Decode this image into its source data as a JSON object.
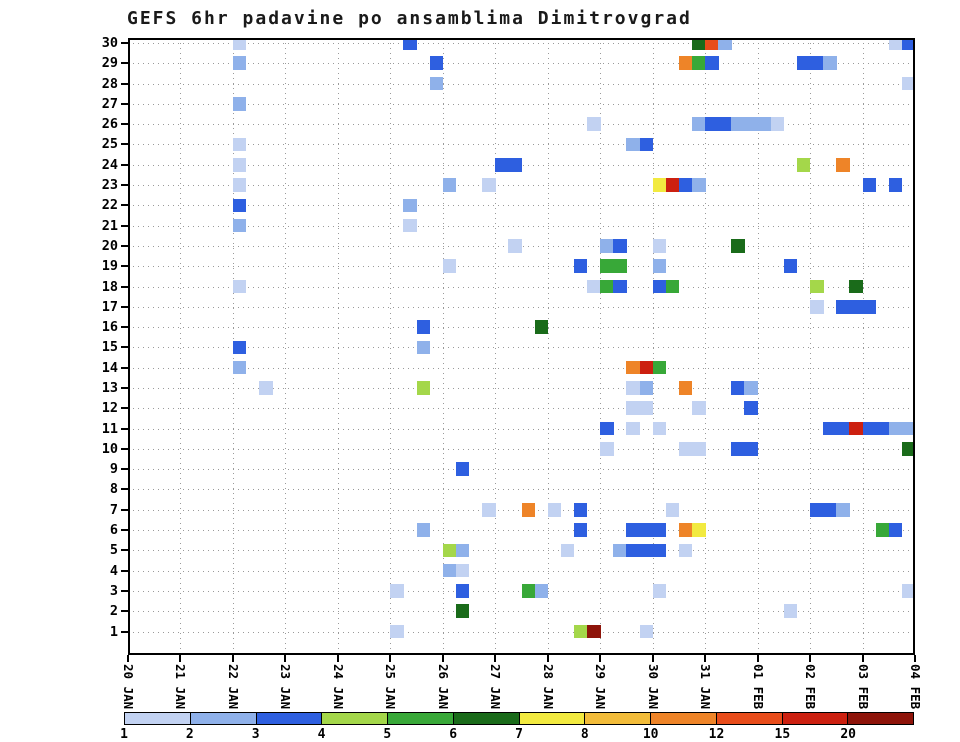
{
  "title": "GEFS 6hr padavine po ansamblima Dimitrovgrad",
  "chart_data": {
    "type": "heatmap",
    "title": "GEFS 6hr padavine po ansamblima Dimitrovgrad",
    "description": "6-hourly precipitation per GEFS ensemble member; x = time (6h steps), y = ensemble member 1-30, color = precipitation amount (mm)",
    "x_tick_labels": [
      "20 JAN",
      "21 JAN",
      "22 JAN",
      "23 JAN",
      "24 JAN",
      "25 JAN",
      "26 JAN",
      "27 JAN",
      "28 JAN",
      "29 JAN",
      "30 JAN",
      "31 JAN",
      "01 FEB",
      "02 FEB",
      "03 FEB",
      "04 FEB"
    ],
    "time_steps_per_day": 4,
    "y_tick_labels": [
      "30",
      "29",
      "28",
      "27",
      "26",
      "25",
      "24",
      "23",
      "22",
      "21",
      "20",
      "19",
      "18",
      "17",
      "16",
      "15",
      "14",
      "13",
      "12",
      "11",
      "10",
      "9",
      "8",
      "7",
      "6",
      "5",
      "4",
      "3",
      "2",
      "1"
    ],
    "levels": [
      1,
      2,
      3,
      4,
      5,
      6,
      7,
      8,
      10,
      12,
      15,
      20
    ],
    "palette": [
      "#c2d2f2",
      "#8fb1ea",
      "#2e5fe0",
      "#a4d74a",
      "#38a838",
      "#1a6b1a",
      "#f2ea40",
      "#f2bc3a",
      "#ee8428",
      "#e84c1a",
      "#cc2010",
      "#8e140a"
    ],
    "cell_format": "[ensemble_member, six_hour_step_index_from_20JAN, palette_color_index]",
    "cells": [
      [
        30,
        8,
        0
      ],
      [
        30,
        21,
        2
      ],
      [
        30,
        43,
        5
      ],
      [
        30,
        44,
        9
      ],
      [
        30,
        45,
        1
      ],
      [
        30,
        58,
        0
      ],
      [
        30,
        59,
        2
      ],
      [
        29,
        8,
        1
      ],
      [
        29,
        23,
        2
      ],
      [
        29,
        42,
        8
      ],
      [
        29,
        43,
        4
      ],
      [
        29,
        44,
        2
      ],
      [
        29,
        51,
        2
      ],
      [
        29,
        52,
        2
      ],
      [
        29,
        53,
        1
      ],
      [
        28,
        23,
        1
      ],
      [
        28,
        59,
        0
      ],
      [
        27,
        8,
        1
      ],
      [
        26,
        35,
        0
      ],
      [
        26,
        43,
        1
      ],
      [
        26,
        44,
        2
      ],
      [
        26,
        45,
        2
      ],
      [
        26,
        46,
        1
      ],
      [
        26,
        47,
        1
      ],
      [
        26,
        48,
        1
      ],
      [
        26,
        49,
        0
      ],
      [
        25,
        8,
        0
      ],
      [
        25,
        38,
        1
      ],
      [
        25,
        39,
        2
      ],
      [
        24,
        8,
        0
      ],
      [
        24,
        28,
        2
      ],
      [
        24,
        29,
        2
      ],
      [
        24,
        51,
        3
      ],
      [
        24,
        54,
        8
      ],
      [
        23,
        8,
        0
      ],
      [
        23,
        24,
        1
      ],
      [
        23,
        27,
        0
      ],
      [
        23,
        40,
        6
      ],
      [
        23,
        41,
        10
      ],
      [
        23,
        42,
        2
      ],
      [
        23,
        43,
        1
      ],
      [
        23,
        56,
        2
      ],
      [
        23,
        58,
        2
      ],
      [
        22,
        8,
        2
      ],
      [
        22,
        21,
        1
      ],
      [
        21,
        8,
        1
      ],
      [
        21,
        21,
        0
      ],
      [
        20,
        29,
        0
      ],
      [
        20,
        36,
        1
      ],
      [
        20,
        37,
        2
      ],
      [
        20,
        40,
        0
      ],
      [
        20,
        46,
        5
      ],
      [
        19,
        24,
        0
      ],
      [
        19,
        34,
        2
      ],
      [
        19,
        36,
        4
      ],
      [
        19,
        37,
        4
      ],
      [
        19,
        40,
        1
      ],
      [
        19,
        50,
        2
      ],
      [
        18,
        8,
        0
      ],
      [
        18,
        35,
        0
      ],
      [
        18,
        36,
        4
      ],
      [
        18,
        37,
        2
      ],
      [
        18,
        40,
        2
      ],
      [
        18,
        41,
        4
      ],
      [
        18,
        52,
        3
      ],
      [
        18,
        55,
        5
      ],
      [
        17,
        52,
        0
      ],
      [
        17,
        54,
        2
      ],
      [
        17,
        55,
        2
      ],
      [
        17,
        56,
        2
      ],
      [
        16,
        22,
        2
      ],
      [
        16,
        31,
        5
      ],
      [
        15,
        8,
        2
      ],
      [
        15,
        22,
        1
      ],
      [
        14,
        8,
        1
      ],
      [
        14,
        38,
        8
      ],
      [
        14,
        39,
        10
      ],
      [
        14,
        40,
        4
      ],
      [
        13,
        10,
        0
      ],
      [
        13,
        22,
        3
      ],
      [
        13,
        38,
        0
      ],
      [
        13,
        39,
        1
      ],
      [
        13,
        42,
        8
      ],
      [
        13,
        46,
        2
      ],
      [
        13,
        47,
        1
      ],
      [
        12,
        38,
        0
      ],
      [
        12,
        39,
        0
      ],
      [
        12,
        43,
        0
      ],
      [
        12,
        47,
        2
      ],
      [
        11,
        36,
        2
      ],
      [
        11,
        38,
        0
      ],
      [
        11,
        40,
        0
      ],
      [
        11,
        53,
        2
      ],
      [
        11,
        54,
        2
      ],
      [
        11,
        55,
        10
      ],
      [
        11,
        56,
        2
      ],
      [
        11,
        57,
        2
      ],
      [
        11,
        58,
        1
      ],
      [
        11,
        59,
        1
      ],
      [
        10,
        36,
        0
      ],
      [
        10,
        42,
        0
      ],
      [
        10,
        43,
        0
      ],
      [
        10,
        46,
        2
      ],
      [
        10,
        47,
        2
      ],
      [
        10,
        59,
        5
      ],
      [
        9,
        25,
        2
      ],
      [
        7,
        27,
        0
      ],
      [
        7,
        30,
        8
      ],
      [
        7,
        32,
        0
      ],
      [
        7,
        34,
        2
      ],
      [
        7,
        41,
        0
      ],
      [
        7,
        52,
        2
      ],
      [
        7,
        53,
        2
      ],
      [
        7,
        54,
        1
      ],
      [
        6,
        22,
        1
      ],
      [
        6,
        34,
        2
      ],
      [
        6,
        38,
        2
      ],
      [
        6,
        39,
        2
      ],
      [
        6,
        40,
        2
      ],
      [
        6,
        42,
        8
      ],
      [
        6,
        43,
        6
      ],
      [
        6,
        57,
        4
      ],
      [
        6,
        58,
        2
      ],
      [
        5,
        24,
        3
      ],
      [
        5,
        25,
        1
      ],
      [
        5,
        33,
        0
      ],
      [
        5,
        37,
        1
      ],
      [
        5,
        38,
        2
      ],
      [
        5,
        39,
        2
      ],
      [
        5,
        40,
        2
      ],
      [
        5,
        42,
        0
      ],
      [
        4,
        24,
        1
      ],
      [
        4,
        25,
        0
      ],
      [
        3,
        20,
        0
      ],
      [
        3,
        25,
        2
      ],
      [
        3,
        30,
        4
      ],
      [
        3,
        31,
        1
      ],
      [
        3,
        40,
        0
      ],
      [
        3,
        59,
        0
      ],
      [
        2,
        25,
        5
      ],
      [
        2,
        50,
        0
      ],
      [
        1,
        20,
        0
      ],
      [
        1,
        34,
        3
      ],
      [
        1,
        35,
        11
      ],
      [
        1,
        39,
        0
      ]
    ]
  },
  "colorbar": {
    "labels": [
      "1",
      "2",
      "3",
      "4",
      "5",
      "6",
      "7",
      "8",
      "10",
      "12",
      "15",
      "20"
    ]
  }
}
